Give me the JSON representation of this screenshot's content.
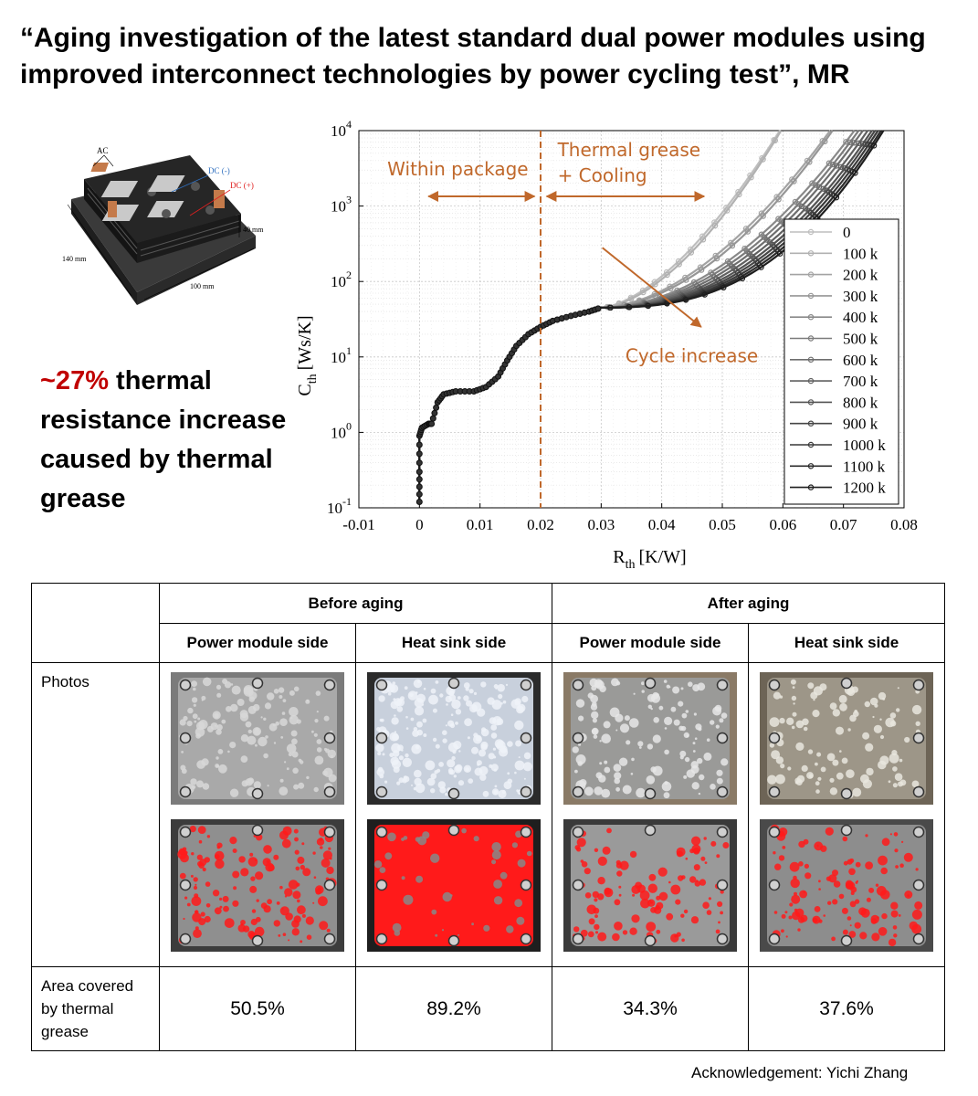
{
  "title": "“Aging investigation of the latest standard dual power modules using improved interconnect technologies by power cycling test”, MR",
  "module_figure": {
    "labels": {
      "ac": "AC",
      "dc_minus": "DC (-)",
      "dc_plus": "DC (+)",
      "height": "40 mm",
      "length": "140 mm",
      "width": "100 mm"
    },
    "colors": {
      "dc_minus": "#2f6fbf",
      "dc_plus": "#e02020"
    }
  },
  "callout": {
    "percent": "~27%",
    "text": "thermal resistance increase caused by thermal grease",
    "highlight_color": "#c00000"
  },
  "chart_data": {
    "type": "line",
    "xlabel": "R",
    "xlabel_sub": "th",
    "xlabel_unit": "[K/W]",
    "ylabel": "C",
    "ylabel_sub": "th",
    "ylabel_unit": "[Ws/K]",
    "xlim": [
      -0.01,
      0.08
    ],
    "ylim": [
      0.1,
      10000
    ],
    "yscale": "log",
    "grid": true,
    "x_ticks": [
      "-0.01",
      "0",
      "0.01",
      "0.02",
      "0.03",
      "0.04",
      "0.05",
      "0.06",
      "0.07",
      "0.08"
    ],
    "y_ticks": [
      {
        "base": "10",
        "exp": "-1"
      },
      {
        "base": "10",
        "exp": "0"
      },
      {
        "base": "10",
        "exp": "1"
      },
      {
        "base": "10",
        "exp": "2"
      },
      {
        "base": "10",
        "exp": "3"
      },
      {
        "base": "10",
        "exp": "4"
      }
    ],
    "legend_position": "right",
    "series_names": [
      "0",
      "100 k",
      "200 k",
      "300 k",
      "400 k",
      "500 k",
      "600 k",
      "700 k",
      "800 k",
      "900 k",
      "1000 k",
      "1100 k",
      "1200 k"
    ],
    "series_end_x": [
      0.0595,
      0.0597,
      0.0678,
      0.0682,
      0.0718,
      0.0725,
      0.0732,
      0.074,
      0.0747,
      0.0752,
      0.0757,
      0.0762,
      0.0766
    ],
    "common_curve": [
      [
        0,
        0.12
      ],
      [
        0,
        0.3
      ],
      [
        0,
        0.9
      ],
      [
        0.0004,
        1.15
      ],
      [
        0.0015,
        1.3
      ],
      [
        0.002,
        1.3
      ],
      [
        0.003,
        2.5
      ],
      [
        0.004,
        3.2
      ],
      [
        0.006,
        3.5
      ],
      [
        0.009,
        3.5
      ],
      [
        0.011,
        4.0
      ],
      [
        0.013,
        5.5
      ],
      [
        0.0145,
        9.0
      ],
      [
        0.016,
        14
      ],
      [
        0.018,
        20
      ],
      [
        0.02,
        25
      ],
      [
        0.022,
        30
      ],
      [
        0.025,
        35
      ],
      [
        0.028,
        40
      ],
      [
        0.03,
        45
      ]
    ],
    "annotations": {
      "within_package": "Within package",
      "thermal_grease_1": "Thermal grease",
      "thermal_grease_2": "+ Cooling",
      "cycle_increase": "Cycle increase",
      "divider_x": 0.02
    },
    "annotation_color": "#c0682b"
  },
  "table": {
    "header_before": "Before aging",
    "header_after": "After aging",
    "col_power_module_1": "Power module side",
    "col_heat_sink_1": "Heat sink side",
    "col_power_module_2": "Power module side",
    "col_heat_sink_2": "Heat sink side",
    "row_photos": "Photos",
    "row_area": "Area covered by thermal grease",
    "values": [
      "50.5%",
      "89.2%",
      "34.3%",
      "37.6%"
    ],
    "mask_color": "#ff1a1a"
  },
  "acknowledgement": "Acknowledgement: Yichi Zhang"
}
